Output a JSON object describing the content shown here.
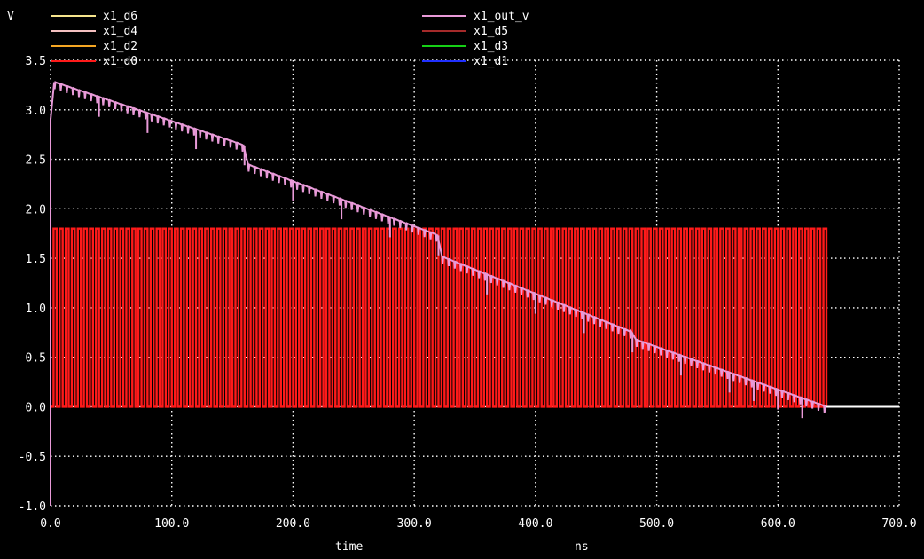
{
  "chart_data": {
    "type": "line",
    "yunit": "V",
    "xlabel": "time",
    "xunit": "ns",
    "xlim": [
      0,
      700
    ],
    "ylim": [
      -1.0,
      3.5
    ],
    "xticks": [
      "0.0",
      "100.0",
      "200.0",
      "300.0",
      "400.0",
      "500.0",
      "600.0",
      "700.0"
    ],
    "yticks": [
      "3.5",
      "3.0",
      "2.5",
      "2.0",
      "1.5",
      "1.0",
      "0.5",
      "0.0",
      "-0.5",
      "-1.0"
    ],
    "grid": true,
    "legend_left": [
      "x1_d6",
      "x1_d4",
      "x1_d2",
      "x1_d0"
    ],
    "legend_right": [
      "x1_out_v",
      "x1_d5",
      "x1_d3",
      "x1_d1"
    ],
    "colors": {
      "x1_d6": "#f6e58d",
      "x1_d4": "#f4c0c0",
      "x1_d2": "#f5a623",
      "x1_d0": "#ff1a1a",
      "x1_out_v": "#e89ad8",
      "x1_d5": "#a52a2a",
      "x1_d3": "#16d016",
      "x1_d1": "#2030ff"
    },
    "digital_high": 1.8,
    "digital_low": 0.0,
    "digital_period_ns": 5,
    "digital_end_ns": 640,
    "out_v_profile": {
      "x": [
        0,
        3,
        160,
        162,
        320,
        322,
        480,
        482,
        640,
        700
      ],
      "y": [
        2.9,
        3.28,
        2.64,
        2.45,
        1.73,
        1.52,
        0.75,
        0.68,
        0.0,
        0.0
      ]
    },
    "out_v_glitch_times": [
      40,
      80,
      120,
      160,
      200,
      240,
      280,
      320,
      360,
      400,
      440,
      480,
      520,
      560,
      580,
      600,
      620
    ]
  }
}
